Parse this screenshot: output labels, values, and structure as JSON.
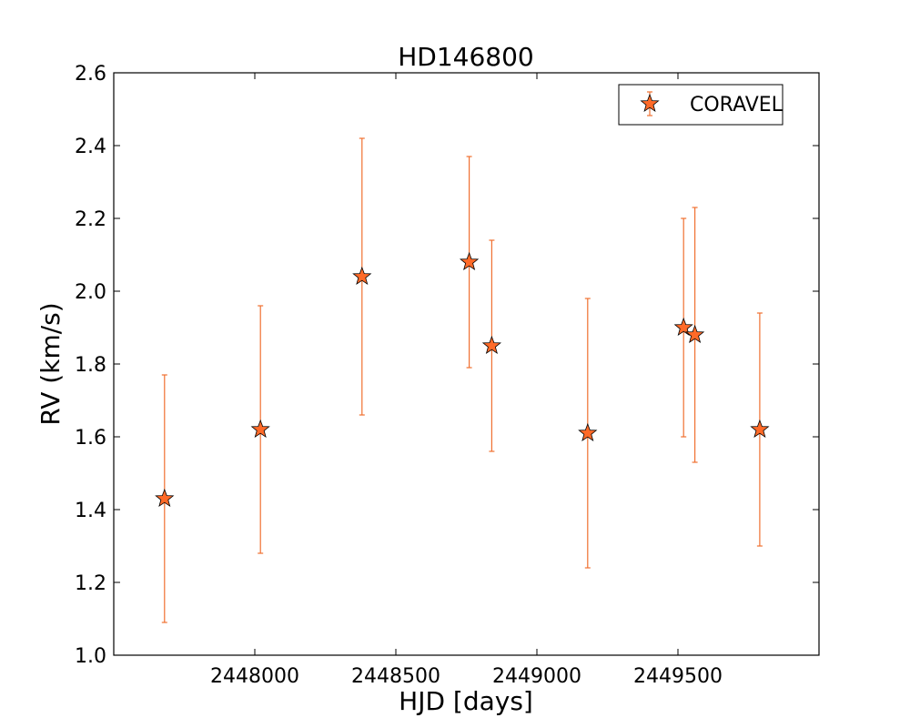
{
  "chart_data": {
    "type": "scatter",
    "title": "HD146800",
    "xlabel": "HJD [days]",
    "ylabel": "RV (km/s)",
    "xlim": [
      2447500,
      2450000
    ],
    "ylim": [
      1.0,
      2.6
    ],
    "xticks": [
      2448000,
      2448500,
      2449000,
      2449500
    ],
    "yticks": [
      1.0,
      1.2,
      1.4,
      1.6,
      1.8,
      2.0,
      2.2,
      2.4,
      2.6
    ],
    "xtick_labels": [
      "2448000",
      "2448500",
      "2449000",
      "2449500"
    ],
    "ytick_labels": [
      "1.0",
      "1.2",
      "1.4",
      "1.6",
      "1.8",
      "2.0",
      "2.2",
      "2.4",
      "2.6"
    ],
    "grid": false,
    "legend_position": "top-right",
    "series": [
      {
        "name": "CORAVEL",
        "marker": "star",
        "marker_color": "#ff6a28",
        "errorbar_color": "#f07030",
        "points": [
          {
            "x": 2447680,
            "y": 1.43,
            "err": 0.34
          },
          {
            "x": 2448020,
            "y": 1.62,
            "err": 0.34
          },
          {
            "x": 2448380,
            "y": 2.04,
            "err": 0.38
          },
          {
            "x": 2448760,
            "y": 2.08,
            "err": 0.29
          },
          {
            "x": 2448840,
            "y": 1.85,
            "err": 0.29
          },
          {
            "x": 2449180,
            "y": 1.61,
            "err": 0.37
          },
          {
            "x": 2449520,
            "y": 1.9,
            "err": 0.3
          },
          {
            "x": 2449560,
            "y": 1.88,
            "err": 0.35
          },
          {
            "x": 2449790,
            "y": 1.62,
            "err": 0.32
          }
        ]
      }
    ]
  }
}
